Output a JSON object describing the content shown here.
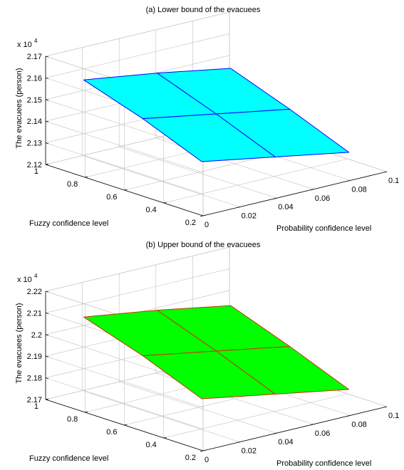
{
  "chart_data": [
    {
      "type": "surface",
      "title": "(a) Lower bound of the evacuees",
      "xlabel": "Probability confidence level",
      "ylabel": "Fuzzy confidence level",
      "zlabel": "The evacuees (person)",
      "z_multiplier": "x 10",
      "z_exponent": "4",
      "x_ticks": [
        "0",
        "0.02",
        "0.04",
        "0.06",
        "0.08",
        "0.1"
      ],
      "y_ticks": [
        "0.2",
        "0.4",
        "0.6",
        "0.8",
        "1"
      ],
      "z_ticks": [
        "2.12",
        "2.13",
        "2.14",
        "2.15",
        "2.16",
        "2.17"
      ],
      "xlim": [
        0,
        0.1
      ],
      "ylim": [
        0.2,
        1
      ],
      "zlim": [
        2.12,
        2.17
      ],
      "surface_color": "#00ffff",
      "edge_color": "#0000ff",
      "x": [
        0.01,
        0.05,
        0.09
      ],
      "y": [
        0.3,
        0.6,
        0.9
      ],
      "z": [
        [
          2.14,
          2.134,
          2.128
        ],
        [
          2.151,
          2.145,
          2.139
        ],
        [
          2.16,
          2.155,
          2.149
        ]
      ]
    },
    {
      "type": "surface",
      "title": "(b) Upper bound of the evacuees",
      "xlabel": "Probability confidence level",
      "ylabel": "Fuzzy confidence level",
      "zlabel": "The evacuees (person)",
      "z_multiplier": "x 10",
      "z_exponent": "4",
      "x_ticks": [
        "0",
        "0.02",
        "0.04",
        "0.06",
        "0.08",
        "0.1"
      ],
      "y_ticks": [
        "0.2",
        "0.4",
        "0.6",
        "0.8",
        "1"
      ],
      "z_ticks": [
        "2.17",
        "2.18",
        "2.19",
        "2.2",
        "2.21",
        "2.22"
      ],
      "xlim": [
        0,
        0.1
      ],
      "ylim": [
        0.2,
        1
      ],
      "zlim": [
        2.17,
        2.22
      ],
      "surface_color": "#00ff00",
      "edge_color": "#cc3300",
      "x": [
        0.01,
        0.05,
        0.09
      ],
      "y": [
        0.3,
        0.6,
        0.9
      ],
      "z": [
        [
          2.189,
          2.183,
          2.177
        ],
        [
          2.2,
          2.194,
          2.188
        ],
        [
          2.209,
          2.204,
          2.198
        ]
      ]
    }
  ]
}
